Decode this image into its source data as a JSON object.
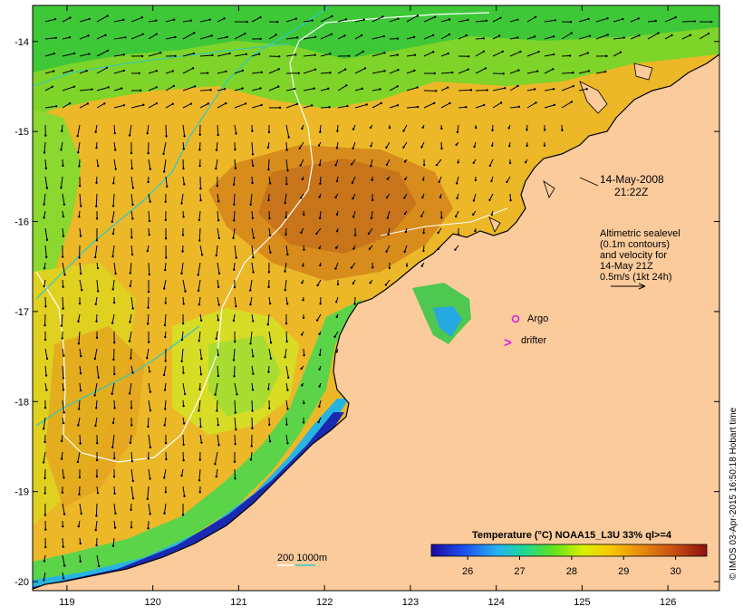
{
  "map": {
    "date": "14-May-2008",
    "time": "21:22Z",
    "annotation_lines": [
      "Altimetric sealevel",
      "(0.1m contours)",
      "and velocity for",
      "14-May 21Z",
      "0.5m/s (1kt 24h)"
    ],
    "argo_label": "Argo",
    "drifter_label": "drifter",
    "drifter_symbol": ">",
    "depth_label": "200  1000m",
    "credit": "© IMOS 03-Apr-2015 16:50:18 Hobart time",
    "colors": {
      "land": "#fbcb9c",
      "contour_200m": "#ffffff",
      "contour_1000m": "#2ec8c8",
      "argo_marker": "#e020e0",
      "drifter_marker": "#e020e0",
      "vectors": "#000000"
    }
  },
  "axes": {
    "x_ticks": [
      "119",
      "120",
      "121",
      "122",
      "123",
      "124",
      "125",
      "126"
    ],
    "y_ticks": [
      "-14",
      "-15",
      "-16",
      "-17",
      "-18",
      "-19",
      "-20"
    ],
    "x_range": [
      118.6,
      126.6
    ],
    "y_range": [
      -20.1,
      -13.6
    ]
  },
  "colorbar": {
    "title": "Temperature (°C) NOAA15_L3U 33% ql>=4",
    "ticks": [
      "26",
      "27",
      "28",
      "29",
      "30"
    ],
    "range": [
      25.3,
      30.6
    ],
    "stops": [
      "#1a0aa0",
      "#1e50f0",
      "#26b4f0",
      "#20d890",
      "#60e020",
      "#d8f000",
      "#f8c800",
      "#e88c10",
      "#c85010",
      "#901010"
    ]
  }
}
